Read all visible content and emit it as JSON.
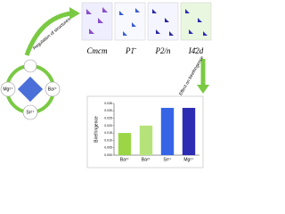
{
  "diagram": {
    "cations": [
      "Mg²⁺",
      "Ba²⁺",
      "Sr²⁺"
    ],
    "regulation": "Regulation of structures",
    "effect": "Effect on birefringence",
    "space_groups": [
      "Cmcm",
      "P1̄",
      "P2/n",
      "I4̄2d"
    ]
  },
  "chart_data": {
    "type": "bar",
    "y_label": "Birefringence",
    "categories": [
      "Ba²⁺",
      "Ba²⁺",
      "Sr²⁺",
      "Mg²⁺"
    ],
    "values": [
      0.015,
      0.02,
      0.032,
      0.032
    ],
    "colors": [
      "#9ad646",
      "#b5e37a",
      "#3565e6",
      "#2d2db4"
    ],
    "ylim": [
      0,
      0.035
    ],
    "yticks": [
      {
        "value": 0,
        "label": "0.000"
      },
      {
        "value": 0.005,
        "label": "0.005"
      },
      {
        "value": 0.01,
        "label": "0.010"
      },
      {
        "value": 0.015,
        "label": "0.015"
      },
      {
        "value": 0.02,
        "label": "0.020"
      },
      {
        "value": 0.025,
        "label": "0.025"
      },
      {
        "value": 0.03,
        "label": "0.030"
      },
      {
        "value": 0.035,
        "label": "0.035"
      }
    ]
  }
}
